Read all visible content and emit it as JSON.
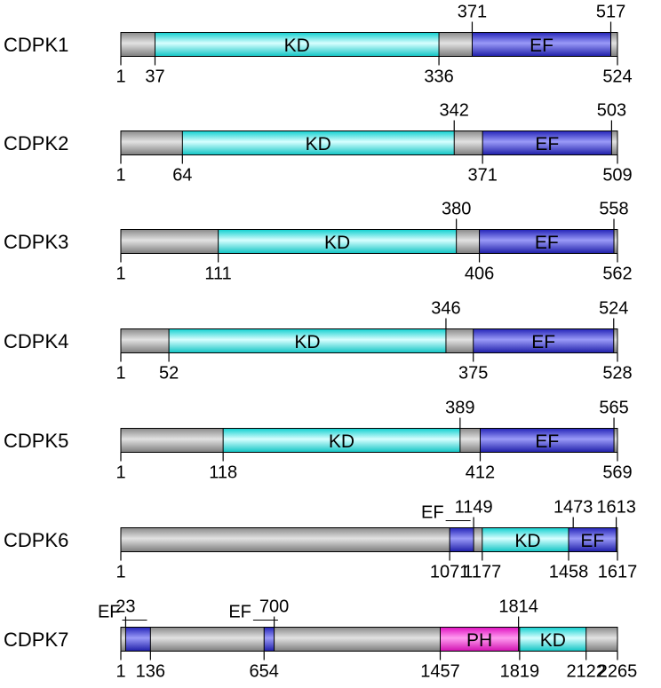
{
  "colors": {
    "background": "#ffffff",
    "backbone": "#a6a6a6",
    "KD": "#33f0f0",
    "EF": "#2f2fd8",
    "PH": "#ee22cc",
    "line": "#000000"
  },
  "proteins": [
    {
      "name": "CDPK1",
      "length": 524,
      "domains": [
        {
          "type": "KD",
          "label": "KD",
          "start": 37,
          "end": 336
        },
        {
          "type": "EF",
          "label": "EF",
          "start": 371,
          "end": 517
        }
      ],
      "markers": [
        {
          "text": "1",
          "side": "below",
          "pos": 1
        },
        {
          "text": "37",
          "side": "below",
          "pos": 37
        },
        {
          "text": "336",
          "side": "below",
          "pos": 336
        },
        {
          "text": "524",
          "side": "below",
          "pos": 524
        },
        {
          "text": "371",
          "side": "above",
          "pos": 371
        },
        {
          "text": "517",
          "side": "above",
          "pos": 517
        }
      ]
    },
    {
      "name": "CDPK2",
      "length": 509,
      "domains": [
        {
          "type": "KD",
          "label": "KD",
          "start": 64,
          "end": 342
        },
        {
          "type": "EF",
          "label": "EF",
          "start": 371,
          "end": 503
        }
      ],
      "markers": [
        {
          "text": "1",
          "side": "below",
          "pos": 1
        },
        {
          "text": "64",
          "side": "below",
          "pos": 64
        },
        {
          "text": "371",
          "side": "below",
          "pos": 371
        },
        {
          "text": "509",
          "side": "below",
          "pos": 509
        },
        {
          "text": "342",
          "side": "above",
          "pos": 342
        },
        {
          "text": "503",
          "side": "above",
          "pos": 503
        }
      ]
    },
    {
      "name": "CDPK3",
      "length": 562,
      "domains": [
        {
          "type": "KD",
          "label": "KD",
          "start": 111,
          "end": 380
        },
        {
          "type": "EF",
          "label": "EF",
          "start": 406,
          "end": 558
        }
      ],
      "markers": [
        {
          "text": "1",
          "side": "below",
          "pos": 1
        },
        {
          "text": "111",
          "side": "below",
          "pos": 111
        },
        {
          "text": "406",
          "side": "below",
          "pos": 406
        },
        {
          "text": "562",
          "side": "below",
          "pos": 562
        },
        {
          "text": "380",
          "side": "above",
          "pos": 380
        },
        {
          "text": "558",
          "side": "above",
          "pos": 558
        }
      ]
    },
    {
      "name": "CDPK4",
      "length": 528,
      "domains": [
        {
          "type": "KD",
          "label": "KD",
          "start": 52,
          "end": 346
        },
        {
          "type": "EF",
          "label": "EF",
          "start": 375,
          "end": 524
        }
      ],
      "markers": [
        {
          "text": "1",
          "side": "below",
          "pos": 1
        },
        {
          "text": "52",
          "side": "below",
          "pos": 52
        },
        {
          "text": "375",
          "side": "below",
          "pos": 375
        },
        {
          "text": "528",
          "side": "below",
          "pos": 528
        },
        {
          "text": "346",
          "side": "above",
          "pos": 346
        },
        {
          "text": "524",
          "side": "above",
          "pos": 524
        }
      ]
    },
    {
      "name": "CDPK5",
      "length": 569,
      "domains": [
        {
          "type": "KD",
          "label": "KD",
          "start": 118,
          "end": 389
        },
        {
          "type": "EF",
          "label": "EF",
          "start": 412,
          "end": 565
        }
      ],
      "markers": [
        {
          "text": "1",
          "side": "below",
          "pos": 1
        },
        {
          "text": "118",
          "side": "below",
          "pos": 118
        },
        {
          "text": "412",
          "side": "below",
          "pos": 412
        },
        {
          "text": "569",
          "side": "below",
          "pos": 569
        },
        {
          "text": "389",
          "side": "above",
          "pos": 389
        },
        {
          "text": "565",
          "side": "above",
          "pos": 565
        }
      ]
    },
    {
      "name": "CDPK6",
      "length": 1617,
      "domains": [
        {
          "type": "EF",
          "label": "",
          "start": 1071,
          "end": 1149
        },
        {
          "type": "KD",
          "label": "KD",
          "start": 1177,
          "end": 1473
        },
        {
          "type": "EF",
          "label": "EF",
          "start": 1458,
          "end": 1613
        }
      ],
      "markers": [
        {
          "text": "1",
          "side": "below",
          "pos": 1
        },
        {
          "text": "1071",
          "side": "below",
          "pos": 1071
        },
        {
          "text": "1177",
          "side": "below",
          "pos": 1177
        },
        {
          "text": "1458",
          "side": "below",
          "pos": 1458
        },
        {
          "text": "1617",
          "side": "below",
          "pos": 1617
        },
        {
          "text": "1149",
          "side": "above",
          "pos": 1149
        },
        {
          "text": "1473",
          "side": "above",
          "pos": 1473
        },
        {
          "text": "1613",
          "side": "above",
          "pos": 1613
        }
      ],
      "callouts": [
        {
          "text": "EF",
          "pos": 1110
        }
      ]
    },
    {
      "name": "CDPK7",
      "length": 2265,
      "domains": [
        {
          "type": "EF",
          "label": "",
          "start": 23,
          "end": 136
        },
        {
          "type": "EF",
          "label": "",
          "start": 654,
          "end": 700
        },
        {
          "type": "PH",
          "label": "PH",
          "start": 1457,
          "end": 1814
        },
        {
          "type": "KD",
          "label": "KD",
          "start": 1819,
          "end": 2122
        }
      ],
      "markers": [
        {
          "text": "1",
          "side": "below",
          "pos": 1
        },
        {
          "text": "136",
          "side": "below",
          "pos": 136
        },
        {
          "text": "654",
          "side": "below",
          "pos": 654
        },
        {
          "text": "1457",
          "side": "below",
          "pos": 1457
        },
        {
          "text": "1819",
          "side": "below",
          "pos": 1819
        },
        {
          "text": "2122",
          "side": "below",
          "pos": 2122
        },
        {
          "text": "2265",
          "side": "below",
          "pos": 2265
        },
        {
          "text": "23",
          "side": "above",
          "pos": 23
        },
        {
          "text": "700",
          "side": "above",
          "pos": 700
        },
        {
          "text": "1814",
          "side": "above",
          "pos": 1814
        }
      ],
      "callouts": [
        {
          "text": "EF",
          "pos": 80
        },
        {
          "text": "EF",
          "pos": 677
        }
      ]
    }
  ]
}
